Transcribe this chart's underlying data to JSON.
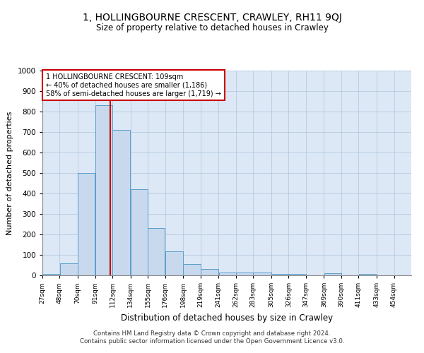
{
  "title": "1, HOLLINGBOURNE CRESCENT, CRAWLEY, RH11 9QJ",
  "subtitle": "Size of property relative to detached houses in Crawley",
  "xlabel": "Distribution of detached houses by size in Crawley",
  "ylabel": "Number of detached properties",
  "footer_line1": "Contains HM Land Registry data © Crown copyright and database right 2024.",
  "footer_line2": "Contains public sector information licensed under the Open Government Licence v3.0.",
  "annotation_line1": "1 HOLLINGBOURNE CRESCENT: 109sqm",
  "annotation_line2": "← 40% of detached houses are smaller (1,186)",
  "annotation_line3": "58% of semi-detached houses are larger (1,719) →",
  "bar_left_edges": [
    27,
    48,
    70,
    91,
    112,
    134,
    155,
    176,
    198,
    219,
    241,
    262,
    283,
    305,
    326,
    347,
    369,
    390,
    411,
    433
  ],
  "bar_widths": [
    21,
    22,
    21,
    21,
    22,
    21,
    21,
    22,
    21,
    22,
    21,
    21,
    22,
    21,
    21,
    22,
    21,
    21,
    22,
    21
  ],
  "bar_heights": [
    8,
    57,
    500,
    830,
    710,
    420,
    230,
    117,
    55,
    32,
    15,
    15,
    15,
    7,
    7,
    0,
    10,
    0,
    8,
    0
  ],
  "bar_color": "#c8d9ee",
  "bar_edge_color": "#5a9ec9",
  "vline_x": 109,
  "vline_color": "#cc0000",
  "ylim": [
    0,
    1000
  ],
  "yticks": [
    0,
    100,
    200,
    300,
    400,
    500,
    600,
    700,
    800,
    900,
    1000
  ],
  "xtick_labels": [
    "27sqm",
    "48sqm",
    "70sqm",
    "91sqm",
    "112sqm",
    "134sqm",
    "155sqm",
    "176sqm",
    "198sqm",
    "219sqm",
    "241sqm",
    "262sqm",
    "283sqm",
    "305sqm",
    "326sqm",
    "347sqm",
    "369sqm",
    "390sqm",
    "411sqm",
    "433sqm",
    "454sqm"
  ],
  "annotation_box_color": "#cc0000",
  "background_color": "#ffffff",
  "axes_bg_color": "#dce8f5",
  "grid_color": "#b0c4de"
}
